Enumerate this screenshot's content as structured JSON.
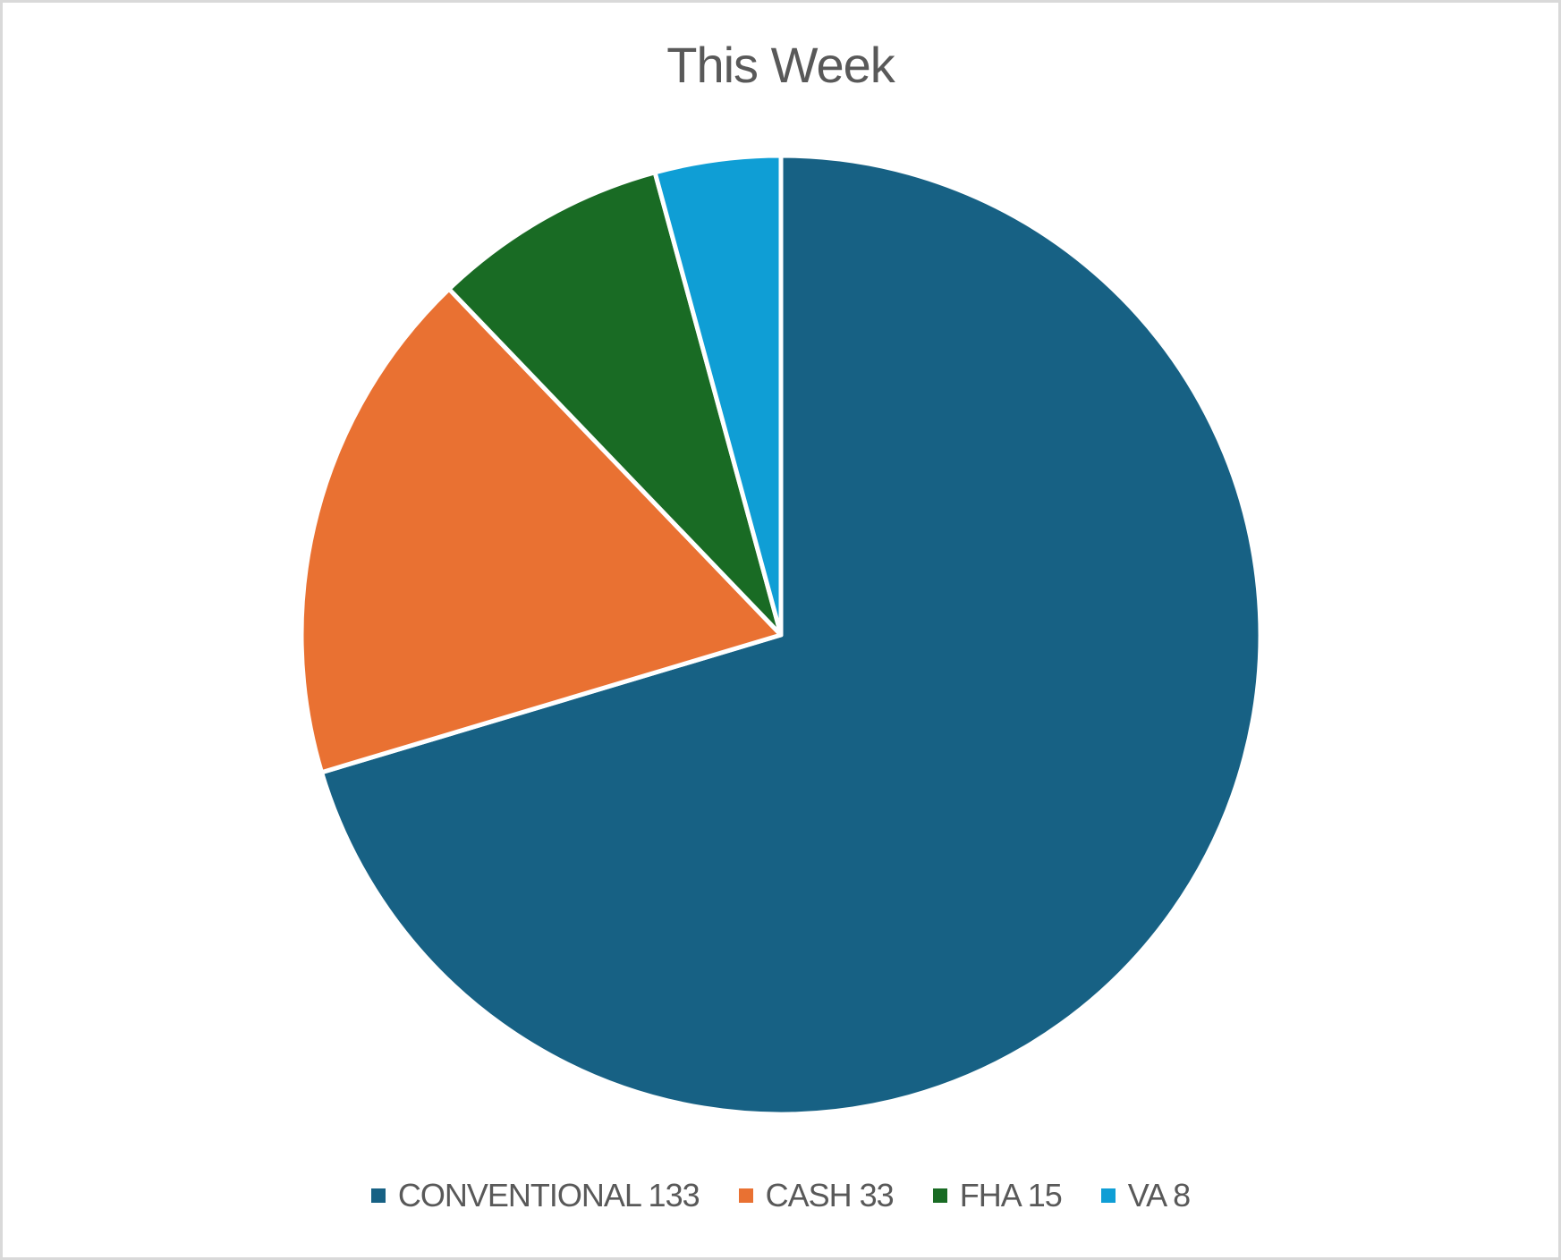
{
  "chart_data": {
    "type": "pie",
    "title": "This Week",
    "start_angle": "top, clockwise",
    "legend_position": "bottom",
    "series": [
      {
        "name": "CONVENTIONAL 133",
        "label": "CONVENTIONAL",
        "value": 133,
        "color": "#176184"
      },
      {
        "name": "CASH 33",
        "label": "CASH",
        "value": 33,
        "color": "#e97132"
      },
      {
        "name": "FHA 15",
        "label": "FHA",
        "value": 15,
        "color": "#196b24"
      },
      {
        "name": "VA 8",
        "label": "VA",
        "value": 8,
        "color": "#0f9ed5"
      }
    ]
  }
}
